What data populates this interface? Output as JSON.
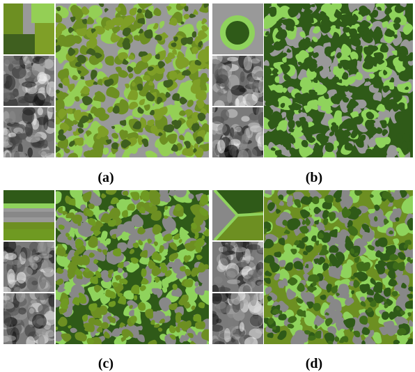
{
  "figure": {
    "panels": [
      {
        "label": "(a)",
        "colors": [
          "#999999",
          "#94cf55",
          "#6d8f22",
          "#7f9f27",
          "#3f5f1f"
        ],
        "map_type": "quadrants"
      },
      {
        "label": "(b)",
        "colors": [
          "#2f5a18",
          "#999999",
          "#8fd35c",
          "#2f5a18",
          "#2f5a18"
        ],
        "map_type": "rings"
      },
      {
        "label": "(c)",
        "colors": [
          "#2f5a18",
          "#8fd35c",
          "#888888",
          "#6d8f22",
          "#6f9a22"
        ],
        "map_type": "stripes"
      },
      {
        "label": "(d)",
        "colors": [
          "#6d8f22",
          "#8fd35c",
          "#888888",
          "#2f5a18",
          "#3f6d1a"
        ],
        "map_type": "wedges"
      }
    ]
  }
}
